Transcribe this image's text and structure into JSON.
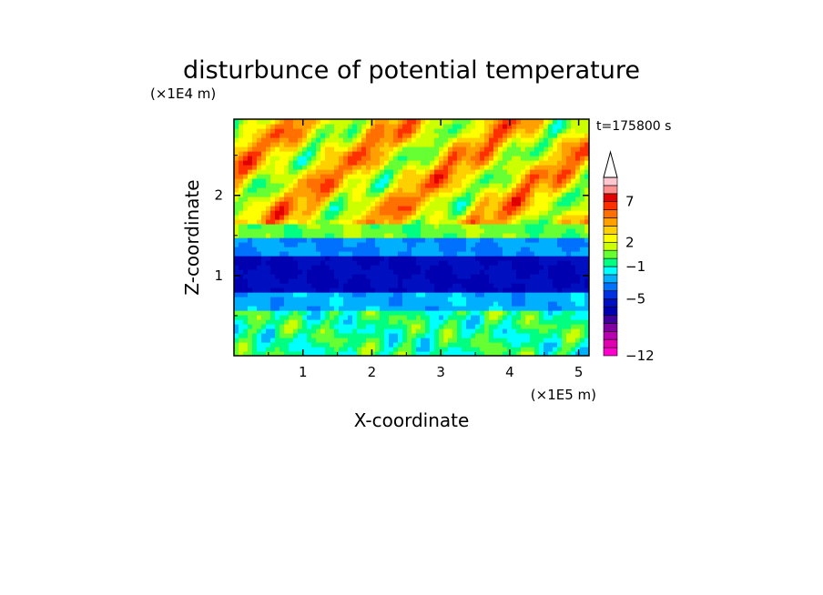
{
  "chart_data": {
    "type": "heatmap",
    "title": "disturbunce of potential temperature",
    "time_label": "t=175800 s",
    "xlabel": "X-coordinate",
    "ylabel": "Z-coordinate",
    "x_unit": "(×1E5 m)",
    "y_unit": "(×1E4 m)",
    "xlim": [
      0,
      5.15
    ],
    "ylim": [
      0,
      2.95
    ],
    "x_ticks": [
      1,
      2,
      3,
      4,
      5
    ],
    "y_ticks": [
      1,
      2
    ],
    "colorbar": {
      "levels": [
        -12,
        -11,
        -10,
        -9,
        -8,
        -7,
        -6,
        -5,
        -4,
        -3,
        -2,
        -1,
        0,
        1,
        2,
        3,
        4,
        5,
        6,
        7,
        8,
        9
      ],
      "tick_labels": [
        "7",
        "2",
        "−1",
        "−5",
        "−12"
      ],
      "tick_values": [
        7,
        2,
        -1,
        -5,
        -12
      ],
      "colors": [
        "#ff00cc",
        "#e000b0",
        "#b800b0",
        "#8000a0",
        "#4000a0",
        "#0000b0",
        "#0010c0",
        "#0030e0",
        "#0070ff",
        "#00b0ff",
        "#00ffff",
        "#00ff80",
        "#66ff33",
        "#ccff00",
        "#ffff00",
        "#ffd000",
        "#ffa000",
        "#ff7000",
        "#ff3000",
        "#e00000",
        "#ff9090",
        "#ffc8d0"
      ],
      "extend": "max"
    },
    "field_summary": [
      {
        "z_range": [
          0,
          0.55
        ],
        "value": -0.5
      },
      {
        "z_range": [
          0.55,
          0.8
        ],
        "value": -2.5
      },
      {
        "z_range": [
          0.8,
          1.25
        ],
        "value": -6
      },
      {
        "z_range": [
          1.25,
          1.45
        ],
        "value": -3
      },
      {
        "z_range": [
          1.45,
          1.65
        ],
        "value": 0.5
      },
      {
        "z_range": [
          1.65,
          2.95
        ],
        "value": 3
      }
    ]
  }
}
